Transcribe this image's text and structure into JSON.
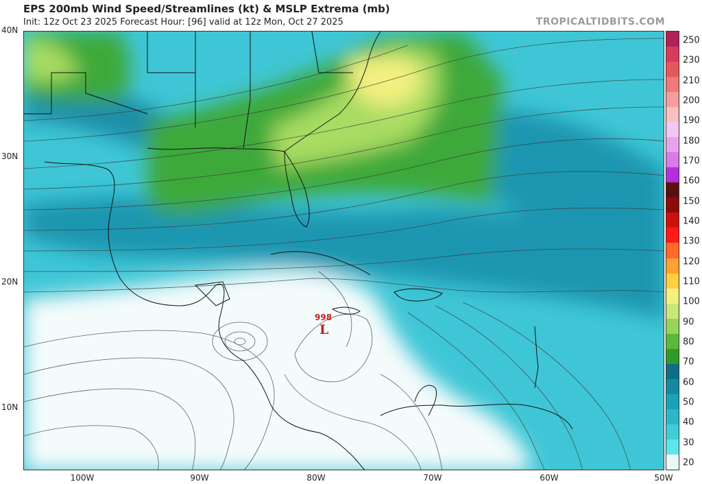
{
  "header": {
    "title": "EPS 200mb Wind Speed/Streamlines (kt) & MSLP Extrema (mb)",
    "subtitle": "Init: 12z Oct 23 2025   Forecast Hour: [96]   valid at 12z Mon, Oct 27 2025",
    "brand": "TROPICALTIDBITS.COM"
  },
  "axes": {
    "lat_labels": [
      "40N",
      "30N",
      "20N",
      "10N"
    ],
    "lon_labels": [
      "100W",
      "90W",
      "80W",
      "70W",
      "60W",
      "50W"
    ]
  },
  "colorbar": {
    "labels": [
      "250",
      "230",
      "210",
      "200",
      "190",
      "180",
      "170",
      "160",
      "150",
      "140",
      "130",
      "120",
      "110",
      "100",
      "90",
      "80",
      "70",
      "60",
      "50",
      "40",
      "30",
      "20"
    ],
    "colors": [
      "#b2205a",
      "#d63a5e",
      "#e5575d",
      "#ef7a78",
      "#f59c9c",
      "#f9c0c0",
      "#f2c8f2",
      "#e7a4ee",
      "#d87ae7",
      "#b62ee0",
      "#5a1010",
      "#8a0c0c",
      "#cf1010",
      "#ff1a1a",
      "#ff6a2a",
      "#ffa030",
      "#ffd040",
      "#f2f080",
      "#c8e87a",
      "#96d45a",
      "#5cb83c",
      "#2f9a2a",
      "#0d6f86",
      "#138aa0",
      "#1ca2b6",
      "#2ab8c8",
      "#3ccfd8",
      "#5ce6ea",
      "#e8f8f8"
    ]
  },
  "annotations": {
    "low_pressure_value": "998",
    "low_pressure_symbol": "L"
  }
}
